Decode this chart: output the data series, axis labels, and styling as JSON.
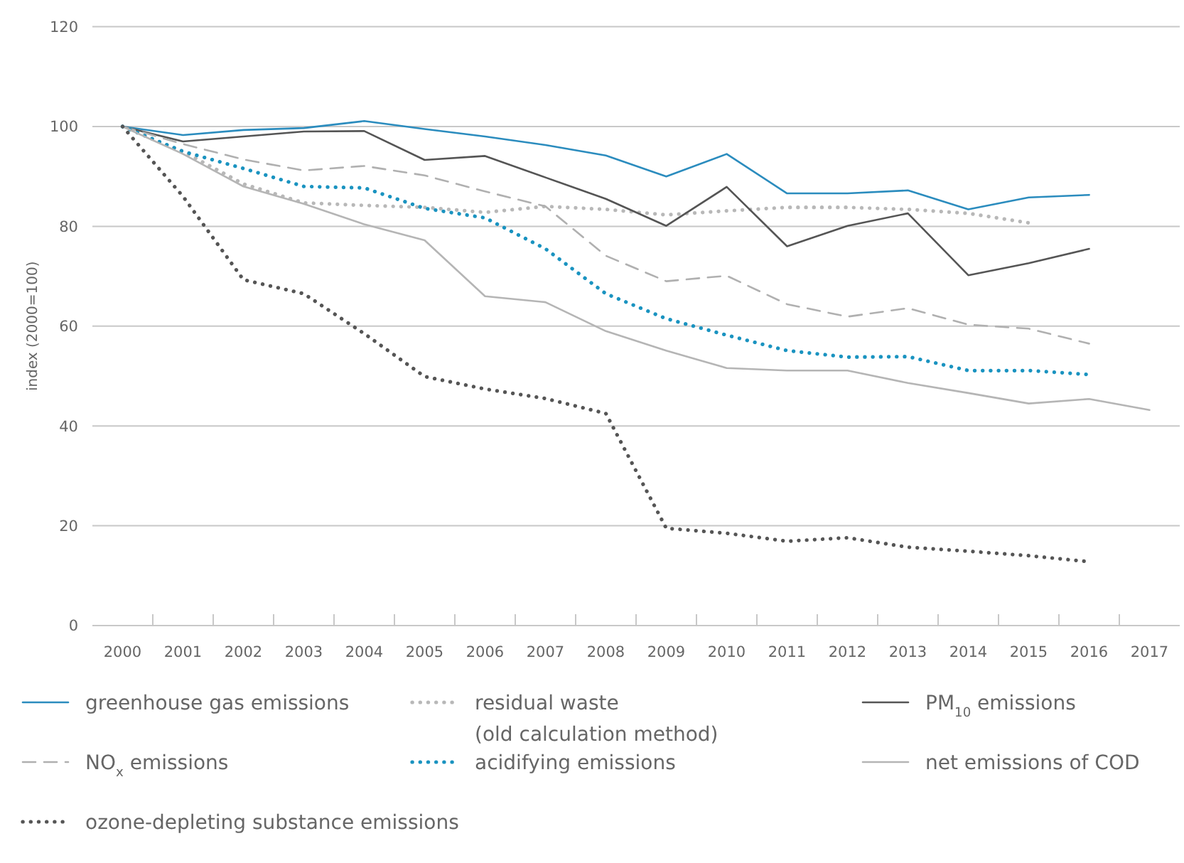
{
  "chart_data": {
    "type": "line",
    "ylabel": "index (2000=100)",
    "categories": [
      "2000",
      "2001",
      "2002",
      "2003",
      "2004",
      "2005",
      "2006",
      "2007",
      "2008",
      "2009",
      "2010",
      "2011",
      "2012",
      "2013",
      "2014",
      "2015",
      "2016",
      "2017"
    ],
    "ylim": [
      0,
      120
    ],
    "yticks": [
      0,
      20,
      40,
      60,
      80,
      100,
      120
    ],
    "grid": "y",
    "legend": "bottom",
    "series": [
      {
        "name": "greenhouse gas emissions",
        "color": "#2b8cbe",
        "line_style": "solid",
        "values": [
          100,
          98.3,
          99.3,
          99.7,
          101.1,
          99.5,
          98,
          96.3,
          94.2,
          90.0,
          94.5,
          86.6,
          86.6,
          87.2,
          83.4,
          85.8,
          86.3,
          null
        ]
      },
      {
        "name": "residual waste\n(old calculation method)",
        "color": "#b8b8b8",
        "line_style": "dotted",
        "values": [
          100,
          95,
          88.5,
          84.7,
          84.2,
          83.8,
          82.8,
          84.0,
          83.4,
          82.3,
          83.1,
          83.8,
          83.8,
          83.4,
          82.6,
          80.7,
          null,
          null
        ]
      },
      {
        "name": "PM$_{10}$ emissions",
        "color": "#555555",
        "line_style": "solid",
        "values": [
          100,
          97.0,
          98.0,
          99.0,
          99.1,
          93.3,
          94.1,
          89.8,
          85.5,
          80.1,
          87.9,
          76.0,
          80.1,
          82.6,
          70.2,
          72.6,
          75.5,
          null
        ]
      },
      {
        "name": "NO$_{x}$ emissions",
        "color": "#b0b0b0",
        "line_style": "dashed",
        "values": [
          100,
          96.5,
          93.4,
          91.2,
          92.1,
          90.2,
          87,
          84,
          74.1,
          69.0,
          70.1,
          64.4,
          61.9,
          63.6,
          60.3,
          59.5,
          56.5,
          null
        ]
      },
      {
        "name": "acidifying emissions",
        "color": "#1a93c0",
        "line_style": "dotted",
        "values": [
          100,
          95,
          91.6,
          88.0,
          87.7,
          83.6,
          81.7,
          75.5,
          66.5,
          61.5,
          58.2,
          55.1,
          53.8,
          53.9,
          51.1,
          51.1,
          50.3,
          null
        ]
      },
      {
        "name": "net emissions of COD",
        "color": "#b5b5b5",
        "line_style": "solid",
        "values": [
          100,
          94.5,
          88.0,
          84.5,
          80.4,
          77.2,
          66.0,
          64.8,
          59.0,
          55.1,
          51.6,
          51.1,
          51.1,
          48.6,
          46.6,
          44.5,
          45.4,
          43.2
        ]
      },
      {
        "name": "ozone-depleting substance emissions",
        "color": "#555555",
        "line_style": "dotted",
        "values": [
          100,
          86,
          69.3,
          66.5,
          58.5,
          49.9,
          47.4,
          45.5,
          42.5,
          19.5,
          18.5,
          16.9,
          17.6,
          15.7,
          14.9,
          14.0,
          12.8,
          null
        ]
      }
    ]
  }
}
